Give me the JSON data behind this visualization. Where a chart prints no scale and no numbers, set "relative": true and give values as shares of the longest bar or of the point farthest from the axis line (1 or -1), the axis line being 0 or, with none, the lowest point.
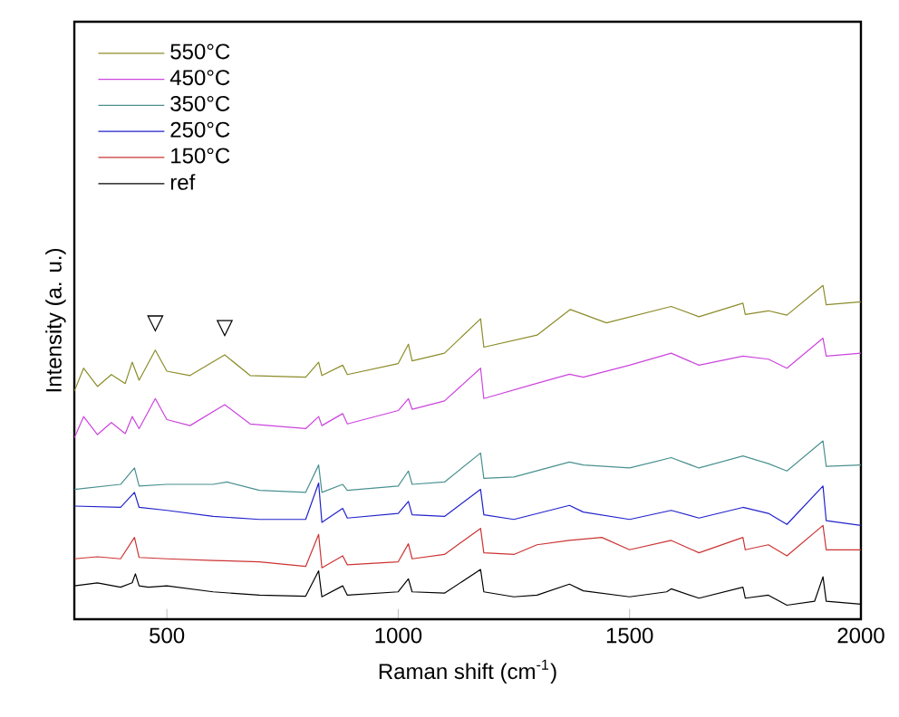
{
  "chart_data": {
    "type": "line",
    "relative": true,
    "xlabel": "Raman shift (cm$^{-1}$)",
    "ylabel": "Intensity (a. u.)",
    "xlim": [
      300,
      2000
    ],
    "xticks": [
      500,
      1000,
      1500,
      2000
    ],
    "legend": "top left",
    "grid": false,
    "marker": "none",
    "line_style": "solid",
    "annotations": [
      {
        "text": "▽",
        "x": 475,
        "y": 0.806
      },
      {
        "text": "▽",
        "x": 625,
        "y": 0.792
      }
    ],
    "series": [
      {
        "name": "550°C",
        "color": "#8c8c2a",
        "x": [
          300,
          320,
          350,
          380,
          410,
          425,
          440,
          475,
          500,
          550,
          625,
          680,
          800,
          828,
          835,
          880,
          890,
          1000,
          1022,
          1030,
          1100,
          1178,
          1185,
          1300,
          1372,
          1450,
          1590,
          1650,
          1745,
          1750,
          1800,
          1840,
          1918,
          1925,
          2000
        ],
        "values": [
          0.683,
          0.752,
          0.697,
          0.733,
          0.706,
          0.77,
          0.716,
          0.806,
          0.743,
          0.73,
          0.792,
          0.73,
          0.725,
          0.77,
          0.73,
          0.761,
          0.733,
          0.766,
          0.824,
          0.774,
          0.797,
          0.9,
          0.815,
          0.851,
          0.928,
          0.888,
          0.937,
          0.906,
          0.947,
          0.913,
          0.924,
          0.911,
          1.0,
          0.942,
          0.951
        ]
      },
      {
        "name": "450°C",
        "color": "#cc44dd",
        "x": [
          300,
          320,
          350,
          380,
          410,
          425,
          440,
          475,
          500,
          550,
          625,
          680,
          800,
          828,
          835,
          880,
          890,
          1000,
          1022,
          1030,
          1100,
          1178,
          1185,
          1300,
          1370,
          1400,
          1500,
          1590,
          1650,
          1745,
          1800,
          1840,
          1918,
          1925,
          2000
        ],
        "values": [
          0.543,
          0.607,
          0.553,
          0.589,
          0.556,
          0.607,
          0.571,
          0.661,
          0.598,
          0.58,
          0.643,
          0.585,
          0.571,
          0.607,
          0.58,
          0.616,
          0.585,
          0.625,
          0.661,
          0.629,
          0.654,
          0.752,
          0.661,
          0.707,
          0.734,
          0.725,
          0.761,
          0.797,
          0.761,
          0.788,
          0.779,
          0.752,
          0.842,
          0.788,
          0.797
        ]
      },
      {
        "name": "350°C",
        "color": "#4a9090",
        "x": [
          300,
          400,
          430,
          440,
          500,
          600,
          630,
          700,
          800,
          828,
          835,
          880,
          890,
          1000,
          1022,
          1030,
          1100,
          1178,
          1185,
          1250,
          1370,
          1400,
          1500,
          1590,
          1650,
          1745,
          1800,
          1840,
          1918,
          1925,
          2000
        ],
        "values": [
          0.389,
          0.404,
          0.453,
          0.399,
          0.404,
          0.404,
          0.411,
          0.386,
          0.38,
          0.462,
          0.38,
          0.404,
          0.386,
          0.399,
          0.444,
          0.404,
          0.411,
          0.498,
          0.422,
          0.426,
          0.471,
          0.462,
          0.453,
          0.484,
          0.453,
          0.489,
          0.466,
          0.444,
          0.534,
          0.458,
          0.462
        ]
      },
      {
        "name": "250°C",
        "color": "#2222cc",
        "x": [
          300,
          400,
          430,
          440,
          500,
          600,
          700,
          800,
          828,
          835,
          880,
          890,
          1000,
          1022,
          1030,
          1100,
          1178,
          1185,
          1250,
          1370,
          1400,
          1500,
          1590,
          1650,
          1745,
          1800,
          1840,
          1918,
          1925,
          2000
        ],
        "values": [
          0.339,
          0.335,
          0.38,
          0.335,
          0.326,
          0.308,
          0.299,
          0.299,
          0.408,
          0.29,
          0.332,
          0.303,
          0.317,
          0.353,
          0.313,
          0.308,
          0.389,
          0.313,
          0.299,
          0.341,
          0.321,
          0.299,
          0.326,
          0.303,
          0.335,
          0.317,
          0.284,
          0.399,
          0.295,
          0.281
        ]
      },
      {
        "name": "150°C",
        "color": "#cc3333",
        "x": [
          300,
          350,
          400,
          430,
          440,
          500,
          600,
          700,
          800,
          828,
          835,
          880,
          890,
          1000,
          1022,
          1030,
          1100,
          1178,
          1185,
          1250,
          1300,
          1370,
          1440,
          1500,
          1590,
          1650,
          1745,
          1750,
          1800,
          1840,
          1918,
          1925,
          2000
        ],
        "values": [
          0.181,
          0.187,
          0.181,
          0.245,
          0.185,
          0.181,
          0.176,
          0.172,
          0.158,
          0.254,
          0.154,
          0.19,
          0.163,
          0.172,
          0.226,
          0.181,
          0.194,
          0.272,
          0.199,
          0.194,
          0.223,
          0.236,
          0.245,
          0.208,
          0.236,
          0.199,
          0.245,
          0.208,
          0.223,
          0.19,
          0.281,
          0.208,
          0.208
        ]
      },
      {
        "name": "ref",
        "color": "#000000",
        "x": [
          300,
          350,
          400,
          425,
          432,
          440,
          460,
          500,
          600,
          700,
          800,
          828,
          835,
          880,
          890,
          1000,
          1022,
          1030,
          1100,
          1178,
          1185,
          1250,
          1300,
          1370,
          1400,
          1500,
          1580,
          1590,
          1650,
          1745,
          1750,
          1800,
          1840,
          1900,
          1918,
          1925,
          2000
        ],
        "values": [
          0.1,
          0.109,
          0.096,
          0.109,
          0.136,
          0.1,
          0.096,
          0.1,
          0.082,
          0.072,
          0.069,
          0.145,
          0.067,
          0.1,
          0.072,
          0.082,
          0.121,
          0.082,
          0.078,
          0.149,
          0.082,
          0.067,
          0.072,
          0.105,
          0.085,
          0.067,
          0.082,
          0.091,
          0.063,
          0.096,
          0.063,
          0.072,
          0.042,
          0.054,
          0.127,
          0.054,
          0.045
        ]
      }
    ]
  }
}
